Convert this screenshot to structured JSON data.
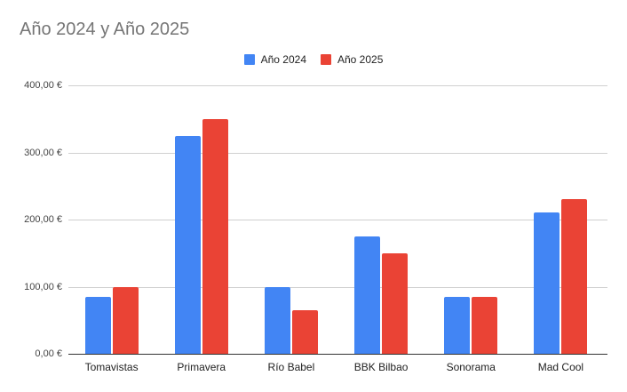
{
  "chart_data": {
    "type": "bar",
    "title": "Año 2024 y Año 2025",
    "xlabel": "",
    "ylabel": "",
    "categories": [
      "Tomavistas",
      "Primavera",
      "Río Babel",
      "BBK Bilbao",
      "Sonorama",
      "Mad Cool"
    ],
    "series": [
      {
        "name": "Año 2024",
        "color": "#4285f4",
        "values": [
          85,
          325,
          100,
          175,
          85,
          210
        ]
      },
      {
        "name": "Año 2025",
        "color": "#ea4335",
        "values": [
          100,
          350,
          65,
          150,
          85,
          230
        ]
      }
    ],
    "ylim": [
      0,
      400
    ],
    "yticks": [
      0,
      100,
      200,
      300,
      400
    ],
    "ytick_labels": [
      "0,00 €",
      "100,00 €",
      "200,00 €",
      "300,00 €",
      "400,00 €"
    ],
    "legend_position": "top",
    "grid": true
  }
}
